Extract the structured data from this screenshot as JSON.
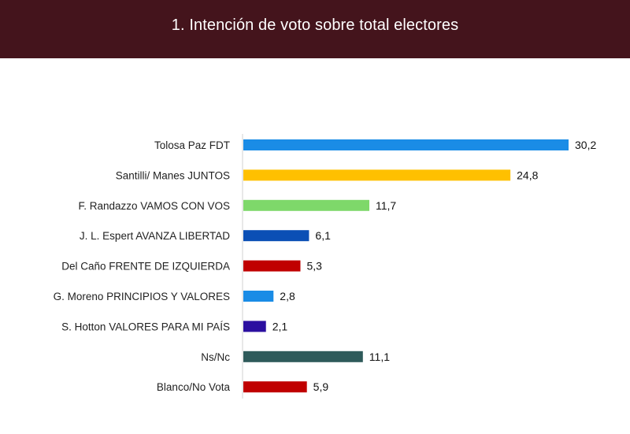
{
  "header": {
    "title": "1. Intención de voto sobre total electores"
  },
  "chart_data": {
    "type": "bar",
    "orientation": "horizontal",
    "title": "1. Intención de voto sobre total electores",
    "xlabel": "",
    "ylabel": "",
    "xlim": [
      0,
      30.2
    ],
    "grid": false,
    "legend": "none",
    "categories": [
      "Tolosa Paz FDT",
      "Santilli/ Manes JUNTOS",
      "F. Randazzo VAMOS CON VOS",
      "J. L. Espert AVANZA LIBERTAD",
      "Del Caño FRENTE DE IZQUIERDA",
      "G. Moreno PRINCIPIOS Y VALORES",
      "S. Hotton VALORES PARA MI PAÍS",
      "Ns/Nc",
      "Blanco/No Vota"
    ],
    "values": [
      30.2,
      24.8,
      11.7,
      6.1,
      5.3,
      2.8,
      2.1,
      11.1,
      5.9
    ],
    "value_labels": [
      "30,2",
      "24,8",
      "11,7",
      "6,1",
      "5,3",
      "2,8",
      "2,1",
      "11,1",
      "5,9"
    ],
    "colors": [
      "#1a8ce6",
      "#ffc000",
      "#7ed86a",
      "#0b4fb5",
      "#c00000",
      "#1a8ce6",
      "#2b0fa0",
      "#2e5a5a",
      "#c00000"
    ]
  }
}
